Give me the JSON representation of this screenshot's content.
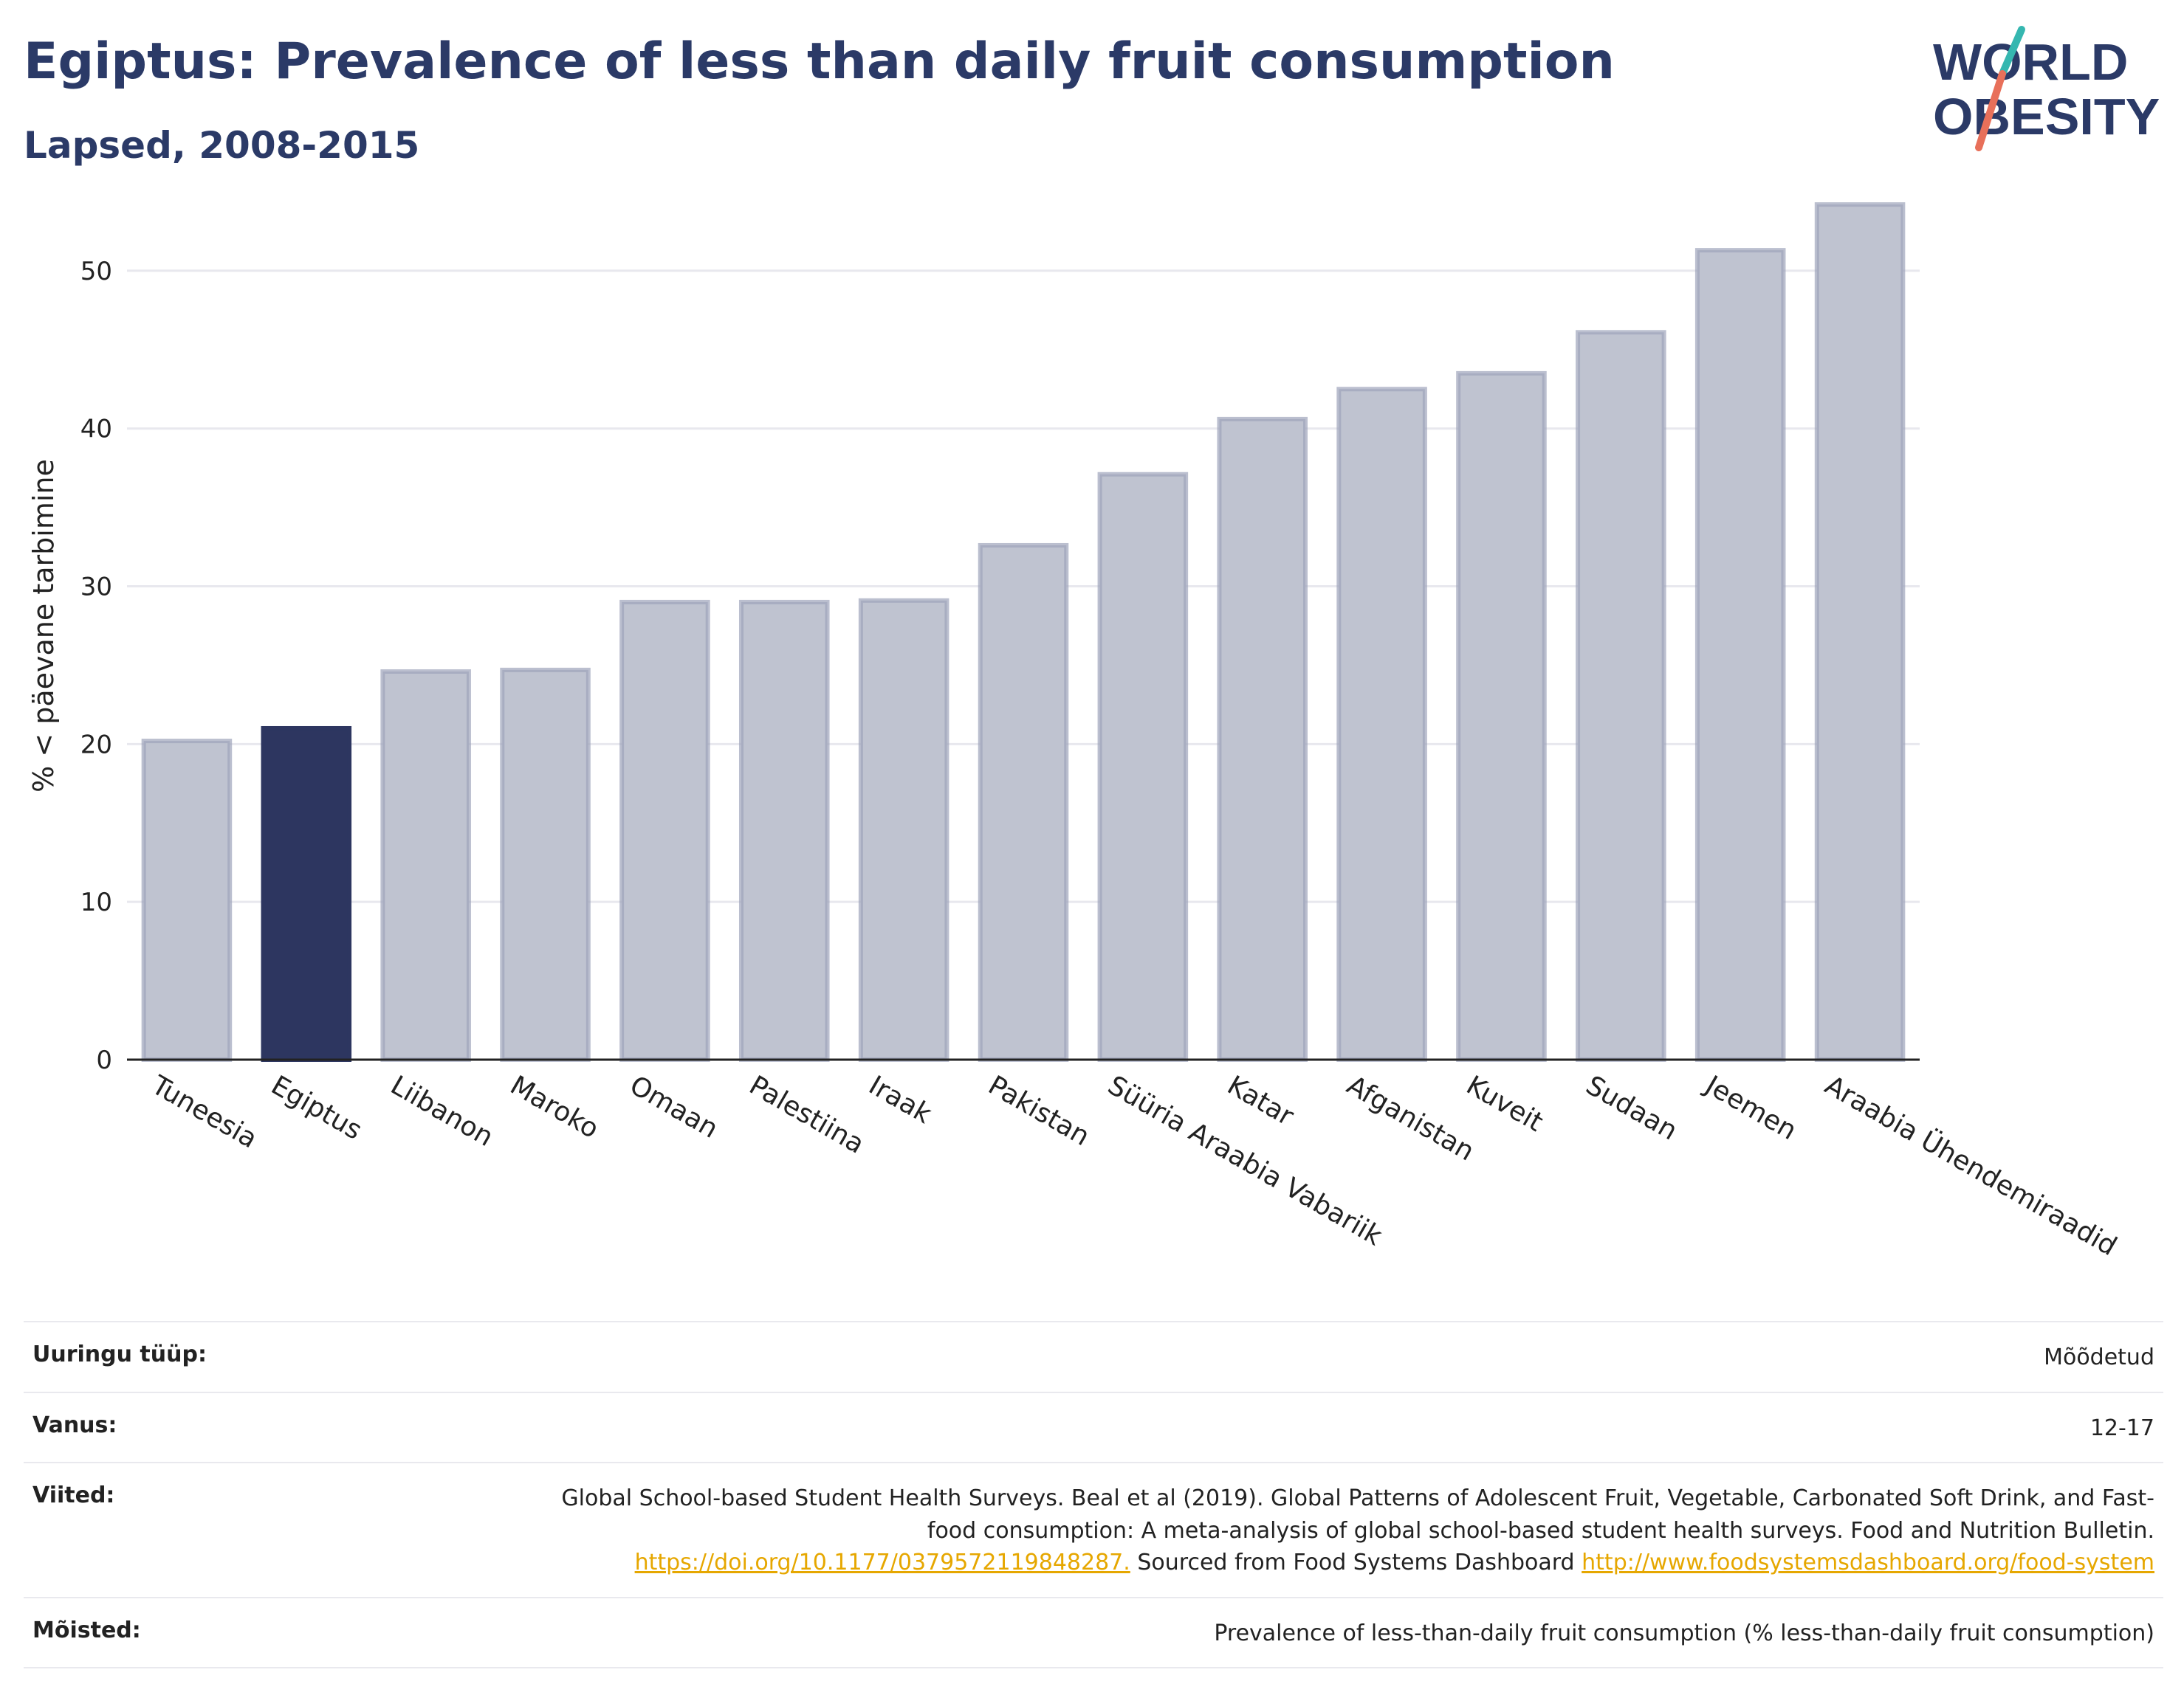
{
  "header": {
    "title": "Egiptus: Prevalence of less than daily fruit consumption",
    "subtitle": "Lapsed, 2008-2015"
  },
  "logo": {
    "line1": "WORLD",
    "line2": "OBESITY",
    "colors": {
      "text": "#2b3a67",
      "slash_top": "#35b7b0",
      "slash_bottom": "#e8705a"
    }
  },
  "colors": {
    "bar": "#bfc3d0",
    "bar_stroke": "#9ea4bb",
    "highlight": "#2d3660",
    "grid": "#e8e8ee",
    "axis": "#222222",
    "link": "#e6a700"
  },
  "chart_data": {
    "type": "bar",
    "title": "Egiptus: Prevalence of less than daily fruit consumption",
    "subtitle": "Lapsed, 2008-2015",
    "ylabel": "% < päevane tarbimine",
    "xlabel": "",
    "ylim": [
      0,
      55
    ],
    "yticks": [
      0,
      10,
      20,
      30,
      40,
      50
    ],
    "grid": true,
    "highlight": "Egiptus",
    "categories": [
      "Tuneesia",
      "Egiptus",
      "Liibanon",
      "Maroko",
      "Omaan",
      "Palestiina",
      "Iraak",
      "Pakistan",
      "Süüria Araabia Vabariik",
      "Katar",
      "Afganistan",
      "Kuveit",
      "Sudaan",
      "Jeemen",
      "Araabia Ühendemiraadid"
    ],
    "values": [
      20.2,
      21.0,
      24.6,
      24.7,
      29.0,
      29.0,
      29.1,
      32.6,
      37.1,
      40.6,
      42.5,
      43.5,
      46.1,
      51.3,
      54.2
    ]
  },
  "meta": [
    {
      "label": "Uuringu tüüp:",
      "value": "Mõõdetud"
    },
    {
      "label": "Vanus:",
      "value": "12-17"
    },
    {
      "label": "Viited:",
      "value_text": "Global School-based Student Health Surveys. Beal et al (2019). Global Patterns of Adolescent Fruit, Vegetable, Carbonated Soft Drink, and Fast-food consumption: A meta-analysis of global school-based student health surveys. Food and Nutrition Bulletin.",
      "link1": "https://doi.org/10.1177/0379572119848287.",
      "mid_text": "Sourced from Food Systems Dashboard",
      "link2": "http://www.foodsystemsdashboard.org/food-system"
    },
    {
      "label": "Mõisted:",
      "value": "Prevalence of less-than-daily fruit consumption (% less-than-daily fruit consumption)"
    }
  ]
}
